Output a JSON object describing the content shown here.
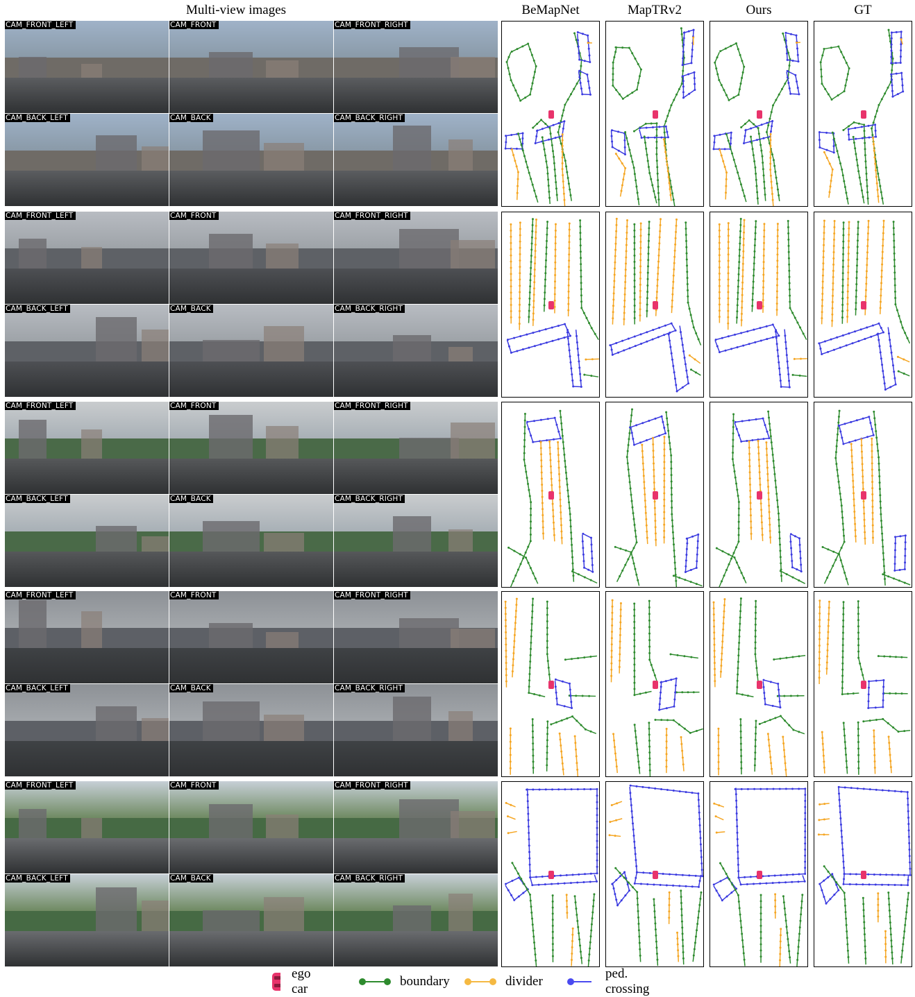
{
  "headers": {
    "multiview": "Multi-view images",
    "col1": "BeMapNet",
    "col2": "MapTRv2",
    "col3": "Ours",
    "col4": "GT"
  },
  "camera_labels": [
    "CAM_FRONT_LEFT",
    "CAM_FRONT",
    "CAM_FRONT_RIGHT",
    "CAM_BACK_LEFT",
    "CAM_BACK",
    "CAM_BACK_RIGHT"
  ],
  "legend": {
    "ego": "ego car",
    "boundary": "boundary",
    "divider": "divider",
    "crossing": "ped. crossing"
  },
  "colors": {
    "boundary": "#2e8b2e",
    "divider": "#f5a623",
    "crossing": "#3a3ae0",
    "ego": "#e8336b"
  },
  "icons": {
    "ego": "car-icon"
  }
}
